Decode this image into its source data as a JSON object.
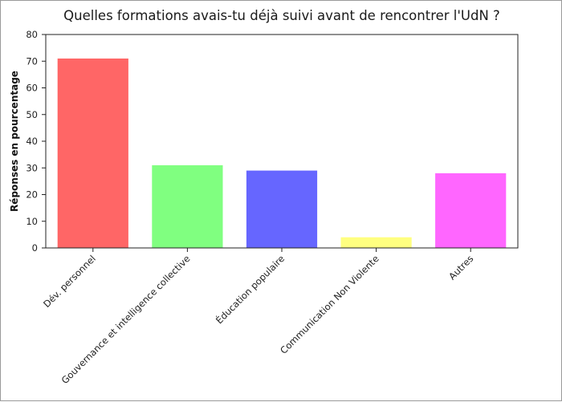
{
  "chart_data": {
    "type": "bar",
    "title": "Quelles formations avais-tu déjà suivi avant de rencontrer l'UdN ?",
    "xlabel": "",
    "ylabel": "Réponses en pourcentage",
    "categories": [
      "Dév. personnel",
      "Gouvernance et intelligence collective",
      "Éducation populaire",
      "Communication Non Violente",
      "Autres"
    ],
    "values": [
      71,
      31,
      29,
      4,
      28
    ],
    "colors": [
      "#ff6666",
      "#80ff80",
      "#6666ff",
      "#ffff80",
      "#ff66ff"
    ],
    "ylim": [
      0,
      80
    ],
    "yticks": [
      0,
      10,
      20,
      30,
      40,
      50,
      60,
      70,
      80
    ],
    "grid": false,
    "legend": "none"
  }
}
